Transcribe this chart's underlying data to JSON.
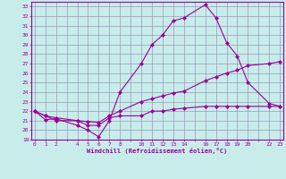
{
  "xlabel": "Windchill (Refroidissement éolien,°C)",
  "bg_color": "#c8ecea",
  "grid_color": "#9999bb",
  "line_color": "#990099",
  "yticks": [
    19,
    20,
    21,
    22,
    23,
    24,
    25,
    26,
    27,
    28,
    29,
    30,
    31,
    32,
    33
  ],
  "xtick_labels": [
    "0",
    "1",
    "2",
    "",
    "4",
    "5",
    "6",
    "7",
    "8",
    "",
    "10",
    "11",
    "12",
    "13",
    "14",
    "",
    "16",
    "17",
    "18",
    "19",
    "20",
    "",
    "22",
    "23"
  ],
  "xtick_positions": [
    0,
    1,
    2,
    3,
    4,
    5,
    6,
    7,
    8,
    9,
    10,
    11,
    12,
    13,
    14,
    15,
    16,
    17,
    18,
    19,
    20,
    21,
    22,
    23
  ],
  "line1_x": [
    0,
    1,
    2,
    4,
    5,
    6,
    7,
    8,
    10,
    11,
    12,
    13,
    14,
    16,
    17,
    18,
    19,
    20,
    22,
    23
  ],
  "line1_y": [
    22,
    21.1,
    21.2,
    20.5,
    20.0,
    19.3,
    21.0,
    24.0,
    27.0,
    29.0,
    30.0,
    31.5,
    31.8,
    33.2,
    31.8,
    29.2,
    27.8,
    25.0,
    22.8,
    22.5
  ],
  "line2_x": [
    0,
    1,
    2,
    4,
    5,
    6,
    7,
    8,
    10,
    11,
    12,
    13,
    14,
    16,
    17,
    18,
    19,
    20,
    22,
    23
  ],
  "line2_y": [
    22,
    21.5,
    21.3,
    21.0,
    20.9,
    20.8,
    21.5,
    22.0,
    23.0,
    23.3,
    23.6,
    23.9,
    24.1,
    25.2,
    25.6,
    26.0,
    26.3,
    26.8,
    27.0,
    27.2
  ],
  "line3_x": [
    0,
    1,
    2,
    4,
    5,
    6,
    7,
    8,
    10,
    11,
    12,
    13,
    14,
    16,
    17,
    18,
    19,
    20,
    22,
    23
  ],
  "line3_y": [
    22.0,
    21.5,
    21.0,
    21.0,
    20.5,
    20.5,
    21.3,
    21.5,
    21.5,
    22.0,
    22.0,
    22.2,
    22.3,
    22.5,
    22.5,
    22.5,
    22.5,
    22.5,
    22.5,
    22.5
  ],
  "ylim": [
    19,
    33.5
  ],
  "xlim": [
    -0.3,
    23.3
  ]
}
